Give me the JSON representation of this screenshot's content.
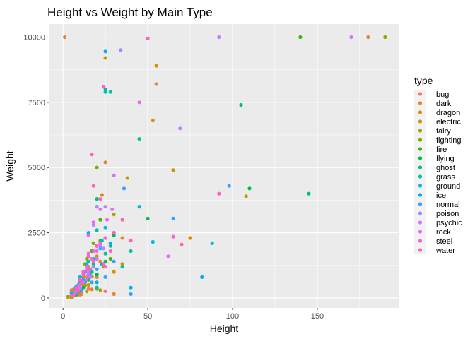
{
  "chart_data": {
    "type": "scatter",
    "title": "Height vs Weight by Main Type",
    "xlabel": "Height",
    "ylabel": "Weight",
    "xlim": [
      -8,
      198
    ],
    "ylim": [
      -380,
      10500
    ],
    "x_ticks": [
      0,
      50,
      100,
      150
    ],
    "y_ticks": [
      0,
      2500,
      5000,
      7500,
      10000
    ],
    "x_tick_labels": [
      "0",
      "50",
      "100",
      "150"
    ],
    "y_tick_labels": [
      "0",
      "2500",
      "5000",
      "7500",
      "10000"
    ],
    "grid": true,
    "legend": {
      "title": "type",
      "position": "right"
    },
    "series": [
      {
        "name": "bug",
        "color": "#F8766D",
        "points": [
          [
            3,
            50
          ],
          [
            5,
            200
          ],
          [
            7,
            250
          ],
          [
            9,
            400
          ],
          [
            10,
            120
          ],
          [
            12,
            600
          ],
          [
            15,
            350
          ],
          [
            20,
            900
          ],
          [
            3,
            30
          ],
          [
            6,
            320
          ],
          [
            11,
            150
          ],
          [
            14,
            700
          ],
          [
            18,
            1200
          ],
          [
            25,
            260
          ]
        ]
      },
      {
        "name": "dark",
        "color": "#EA8331",
        "points": [
          [
            1,
            10000
          ],
          [
            180,
            10000
          ],
          [
            55,
            8200
          ],
          [
            25,
            5200
          ],
          [
            30,
            150
          ],
          [
            10,
            400
          ],
          [
            15,
            1600
          ],
          [
            20,
            800
          ],
          [
            7,
            100
          ],
          [
            5,
            300
          ],
          [
            12,
            500
          ],
          [
            17,
            330
          ],
          [
            22,
            1400
          ],
          [
            35,
            2300
          ]
        ]
      },
      {
        "name": "dragon",
        "color": "#D89000",
        "points": [
          [
            55,
            8900
          ],
          [
            25,
            9200
          ],
          [
            53,
            6800
          ],
          [
            38,
            4600
          ],
          [
            23,
            3950
          ],
          [
            45,
            3500
          ],
          [
            75,
            2300
          ],
          [
            30,
            1000
          ],
          [
            20,
            1600
          ],
          [
            15,
            1200
          ],
          [
            7,
            300
          ],
          [
            12,
            800
          ],
          [
            18,
            2100
          ],
          [
            35,
            1300
          ]
        ]
      },
      {
        "name": "electric",
        "color": "#C09B00",
        "points": [
          [
            65,
            4900
          ],
          [
            108,
            3900
          ],
          [
            30,
            3200
          ],
          [
            15,
            500
          ],
          [
            10,
            400
          ],
          [
            5,
            60
          ],
          [
            8,
            150
          ],
          [
            12,
            600
          ],
          [
            17,
            820
          ],
          [
            22,
            300
          ],
          [
            20,
            1500
          ],
          [
            14,
            250
          ]
        ]
      },
      {
        "name": "fairy",
        "color": "#A3A500",
        "points": [
          [
            5,
            20
          ],
          [
            3,
            50
          ],
          [
            8,
            100
          ],
          [
            12,
            500
          ],
          [
            15,
            1000
          ],
          [
            10,
            200
          ],
          [
            20,
            350
          ],
          [
            13,
            480
          ],
          [
            7,
            300
          ]
        ]
      },
      {
        "name": "fighting",
        "color": "#7CAE00",
        "points": [
          [
            190,
            10000
          ],
          [
            20,
            5000
          ],
          [
            14,
            1500
          ],
          [
            13,
            1300
          ],
          [
            18,
            2100
          ],
          [
            24,
            1200
          ],
          [
            10,
            300
          ],
          [
            8,
            400
          ],
          [
            12,
            700
          ],
          [
            16,
            950
          ],
          [
            22,
            2200
          ],
          [
            15,
            800
          ]
        ]
      },
      {
        "name": "fire",
        "color": "#39B600",
        "points": [
          [
            140,
            10000
          ],
          [
            22,
            3000
          ],
          [
            17,
            1800
          ],
          [
            20,
            900
          ],
          [
            10,
            400
          ],
          [
            7,
            100
          ],
          [
            25,
            2300
          ],
          [
            13,
            600
          ],
          [
            28,
            1500
          ],
          [
            15,
            1100
          ]
        ]
      },
      {
        "name": "flying",
        "color": "#00BB4E",
        "points": [
          [
            110,
            4200
          ],
          [
            50,
            3050
          ],
          [
            25,
            1400
          ],
          [
            20,
            900
          ],
          [
            15,
            700
          ],
          [
            12,
            400
          ],
          [
            8,
            150
          ],
          [
            18,
            1200
          ],
          [
            30,
            2400
          ],
          [
            10,
            300
          ]
        ]
      },
      {
        "name": "ghost",
        "color": "#00BF7D",
        "points": [
          [
            145,
            4000
          ],
          [
            105,
            7400
          ],
          [
            25,
            8000
          ],
          [
            20,
            3800
          ],
          [
            15,
            1000
          ],
          [
            12,
            700
          ],
          [
            10,
            400
          ],
          [
            5,
            100
          ],
          [
            18,
            1300
          ],
          [
            28,
            2000
          ]
        ]
      },
      {
        "name": "grass",
        "color": "#00C1A3",
        "points": [
          [
            45,
            6100
          ],
          [
            25,
            7900
          ],
          [
            28,
            7900
          ],
          [
            23,
            2200
          ],
          [
            20,
            2600
          ],
          [
            15,
            1400
          ],
          [
            10,
            600
          ],
          [
            5,
            100
          ],
          [
            8,
            300
          ],
          [
            12,
            900
          ],
          [
            17,
            1000
          ],
          [
            40,
            1800
          ],
          [
            30,
            2500
          ],
          [
            25,
            1700
          ],
          [
            35,
            1200
          ],
          [
            20,
            400
          ]
        ]
      },
      {
        "name": "ground",
        "color": "#00BAE0",
        "points": [
          [
            88,
            2100
          ],
          [
            53,
            2150
          ],
          [
            45,
            3500
          ],
          [
            20,
            2000
          ],
          [
            14,
            1300
          ],
          [
            10,
            800
          ],
          [
            15,
            1000
          ],
          [
            5,
            200
          ],
          [
            8,
            450
          ],
          [
            12,
            600
          ],
          [
            25,
            2700
          ],
          [
            18,
            1500
          ]
        ]
      },
      {
        "name": "ice",
        "color": "#00B0F6",
        "points": [
          [
            25,
            9450
          ],
          [
            82,
            800
          ],
          [
            40,
            400
          ],
          [
            23,
            1300
          ],
          [
            15,
            2500
          ],
          [
            10,
            400
          ],
          [
            7,
            200
          ],
          [
            12,
            900
          ],
          [
            18,
            1200
          ],
          [
            20,
            600
          ],
          [
            5,
            100
          ],
          [
            28,
            2100
          ]
        ]
      },
      {
        "name": "normal",
        "color": "#35A2FF",
        "points": [
          [
            98,
            4300
          ],
          [
            36,
            4200
          ],
          [
            65,
            3050
          ],
          [
            40,
            150
          ],
          [
            12,
            700
          ],
          [
            9,
            500
          ],
          [
            5,
            100
          ],
          [
            14,
            1200
          ],
          [
            18,
            2900
          ],
          [
            20,
            1100
          ],
          [
            25,
            800
          ],
          [
            30,
            1400
          ],
          [
            16,
            850
          ],
          [
            8,
            200
          ],
          [
            22,
            1900
          ],
          [
            11,
            300
          ],
          [
            7,
            400
          ],
          [
            13,
            1000
          ],
          [
            17,
            600
          ]
        ]
      },
      {
        "name": "poison",
        "color": "#9590FF",
        "points": [
          [
            34,
            9500
          ],
          [
            20,
            3500
          ],
          [
            15,
            900
          ],
          [
            12,
            600
          ],
          [
            10,
            400
          ],
          [
            5,
            100
          ],
          [
            18,
            1200
          ],
          [
            22,
            2000
          ],
          [
            8,
            300
          ],
          [
            14,
            700
          ]
        ]
      },
      {
        "name": "psychic",
        "color": "#C77CFF",
        "points": [
          [
            92,
            10000
          ],
          [
            170,
            10000
          ],
          [
            69,
            6500
          ],
          [
            30,
            4700
          ],
          [
            25,
            3500
          ],
          [
            29,
            3400
          ],
          [
            20,
            1500
          ],
          [
            15,
            1000
          ],
          [
            12,
            600
          ],
          [
            10,
            400
          ],
          [
            5,
            100
          ],
          [
            18,
            2800
          ],
          [
            8,
            300
          ],
          [
            24,
            1900
          ],
          [
            16,
            800
          ]
        ]
      },
      {
        "name": "rock",
        "color": "#E76BF3",
        "points": [
          [
            45,
            7500
          ],
          [
            62,
            1600
          ],
          [
            18,
            2900
          ],
          [
            15,
            2400
          ],
          [
            25,
            2300
          ],
          [
            12,
            1000
          ],
          [
            10,
            700
          ],
          [
            8,
            400
          ],
          [
            20,
            1800
          ],
          [
            14,
            1200
          ],
          [
            7,
            200
          ],
          [
            22,
            3400
          ],
          [
            26,
            3000
          ],
          [
            17,
            1500
          ]
        ]
      },
      {
        "name": "steel",
        "color": "#FA62DB",
        "points": [
          [
            24,
            8100
          ],
          [
            65,
            2350
          ],
          [
            22,
            2100
          ],
          [
            20,
            2000
          ],
          [
            15,
            1700
          ],
          [
            12,
            900
          ],
          [
            10,
            500
          ],
          [
            8,
            300
          ],
          [
            18,
            1800
          ],
          [
            14,
            1100
          ],
          [
            25,
            2300
          ],
          [
            6,
            100
          ]
        ]
      },
      {
        "name": "water",
        "color": "#FF62BC",
        "points": [
          [
            50,
            9950
          ],
          [
            92,
            4000
          ],
          [
            70,
            2050
          ],
          [
            17,
            5500
          ],
          [
            18,
            4300
          ],
          [
            22,
            3800
          ],
          [
            30,
            2500
          ],
          [
            15,
            1600
          ],
          [
            12,
            1000
          ],
          [
            10,
            700
          ],
          [
            8,
            400
          ],
          [
            5,
            100
          ],
          [
            20,
            2000
          ],
          [
            25,
            1200
          ],
          [
            35,
            3000
          ],
          [
            40,
            2200
          ],
          [
            14,
            800
          ],
          [
            18,
            1400
          ],
          [
            28,
            1800
          ],
          [
            11,
            600
          ],
          [
            16,
            1100
          ],
          [
            24,
            1300
          ],
          [
            9,
            300
          ]
        ]
      }
    ]
  }
}
